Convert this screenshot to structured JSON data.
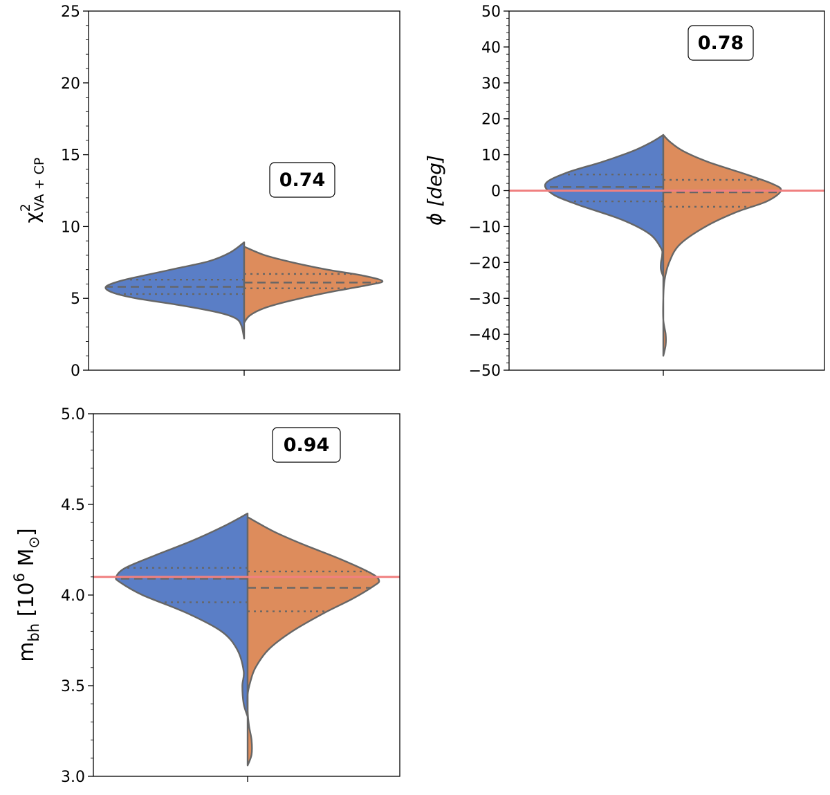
{
  "chart_data": [
    {
      "type": "violin",
      "ylabel_main": "χ",
      "ylabel_sup": "2",
      "ylabel_sub": "VA + CP",
      "ylim": [
        0,
        25
      ],
      "yticks": [
        0,
        5,
        10,
        15,
        20,
        25
      ],
      "annotation": "0.74",
      "series": [
        {
          "side": "left",
          "color": "#5a7ec6",
          "profile": [
            [
              2.2,
              0.0
            ],
            [
              3.1,
              0.02
            ],
            [
              3.6,
              0.06
            ],
            [
              4.0,
              0.18
            ],
            [
              4.5,
              0.45
            ],
            [
              5.0,
              0.78
            ],
            [
              5.4,
              0.95
            ],
            [
              5.8,
              1.0
            ],
            [
              6.2,
              0.9
            ],
            [
              6.6,
              0.72
            ],
            [
              7.1,
              0.48
            ],
            [
              7.6,
              0.25
            ],
            [
              8.2,
              0.1
            ],
            [
              8.9,
              0.0
            ]
          ],
          "median": 5.8,
          "q1": 5.3,
          "q3": 6.3
        },
        {
          "side": "right",
          "color": "#dd8c5c",
          "profile": [
            [
              3.3,
              0.0
            ],
            [
              3.8,
              0.04
            ],
            [
              4.3,
              0.14
            ],
            [
              4.8,
              0.32
            ],
            [
              5.4,
              0.6
            ],
            [
              5.9,
              0.88
            ],
            [
              6.2,
              1.0
            ],
            [
              6.6,
              0.85
            ],
            [
              7.0,
              0.6
            ],
            [
              7.5,
              0.35
            ],
            [
              8.0,
              0.15
            ],
            [
              8.6,
              0.0
            ]
          ],
          "median": 6.1,
          "q1": 5.7,
          "q3": 6.7
        }
      ]
    },
    {
      "type": "violin",
      "ylabel_main": "ϕ [deg]",
      "ylim": [
        -50,
        50
      ],
      "yticks": [
        -50,
        -40,
        -30,
        -20,
        -10,
        0,
        10,
        20,
        30,
        40,
        50
      ],
      "annotation": "0.78",
      "reference_line": 0,
      "series": [
        {
          "side": "left",
          "color": "#5a7ec6",
          "profile": [
            [
              -24,
              0.0
            ],
            [
              -22,
              0.02
            ],
            [
              -20,
              0.02
            ],
            [
              -18,
              0.01
            ],
            [
              -16,
              0.02
            ],
            [
              -12,
              0.12
            ],
            [
              -8,
              0.36
            ],
            [
              -4,
              0.72
            ],
            [
              -1,
              0.94
            ],
            [
              2,
              1.0
            ],
            [
              5,
              0.82
            ],
            [
              8,
              0.52
            ],
            [
              11,
              0.26
            ],
            [
              13.5,
              0.1
            ],
            [
              15.5,
              0.0
            ]
          ],
          "median": 1.0,
          "q1": -3.0,
          "q3": 4.5
        },
        {
          "side": "right",
          "color": "#dd8c5c",
          "profile": [
            [
              -46,
              0.0
            ],
            [
              -43,
              0.02
            ],
            [
              -40,
              0.02
            ],
            [
              -36,
              0.0
            ],
            [
              -30,
              0.0
            ],
            [
              -25,
              0.01
            ],
            [
              -20,
              0.05
            ],
            [
              -15,
              0.14
            ],
            [
              -10,
              0.36
            ],
            [
              -6,
              0.62
            ],
            [
              -3,
              0.88
            ],
            [
              0,
              1.0
            ],
            [
              2,
              0.92
            ],
            [
              5,
              0.66
            ],
            [
              8,
              0.38
            ],
            [
              11,
              0.17
            ],
            [
              13.5,
              0.06
            ],
            [
              15.5,
              0.0
            ]
          ],
          "median": -0.5,
          "q1": -4.5,
          "q3": 3.0
        }
      ]
    },
    {
      "type": "violin",
      "ylabel_main": "m",
      "ylabel_sub": "bh",
      "ylabel_unit_open": " [10",
      "ylabel_unit_sup": "6",
      "ylabel_unit_rest": " M",
      "ylabel_unit_sym": "⊙",
      "ylabel_unit_close": "]",
      "ylim": [
        3.0,
        5.0
      ],
      "yticks": [
        3.0,
        3.5,
        4.0,
        4.5,
        5.0
      ],
      "annotation": "0.94",
      "reference_line": 4.1,
      "series": [
        {
          "side": "left",
          "color": "#5a7ec6",
          "profile": [
            [
              3.33,
              0.0
            ],
            [
              3.4,
              0.03
            ],
            [
              3.5,
              0.04
            ],
            [
              3.58,
              0.03
            ],
            [
              3.7,
              0.08
            ],
            [
              3.8,
              0.2
            ],
            [
              3.9,
              0.46
            ],
            [
              4.0,
              0.8
            ],
            [
              4.07,
              0.97
            ],
            [
              4.1,
              1.0
            ],
            [
              4.15,
              0.93
            ],
            [
              4.22,
              0.7
            ],
            [
              4.3,
              0.42
            ],
            [
              4.38,
              0.18
            ],
            [
              4.45,
              0.0
            ]
          ],
          "median": 4.09,
          "q1": 3.96,
          "q3": 4.15
        },
        {
          "side": "right",
          "color": "#dd8c5c",
          "profile": [
            [
              3.06,
              0.0
            ],
            [
              3.12,
              0.03
            ],
            [
              3.2,
              0.03
            ],
            [
              3.28,
              0.01
            ],
            [
              3.36,
              0.0
            ],
            [
              3.45,
              0.0
            ],
            [
              3.52,
              0.02
            ],
            [
              3.6,
              0.06
            ],
            [
              3.7,
              0.16
            ],
            [
              3.8,
              0.34
            ],
            [
              3.9,
              0.58
            ],
            [
              3.98,
              0.8
            ],
            [
              4.05,
              0.96
            ],
            [
              4.08,
              1.0
            ],
            [
              4.12,
              0.94
            ],
            [
              4.2,
              0.7
            ],
            [
              4.28,
              0.42
            ],
            [
              4.35,
              0.2
            ],
            [
              4.43,
              0.0
            ]
          ],
          "median": 4.04,
          "q1": 3.91,
          "q3": 4.13
        }
      ]
    }
  ]
}
